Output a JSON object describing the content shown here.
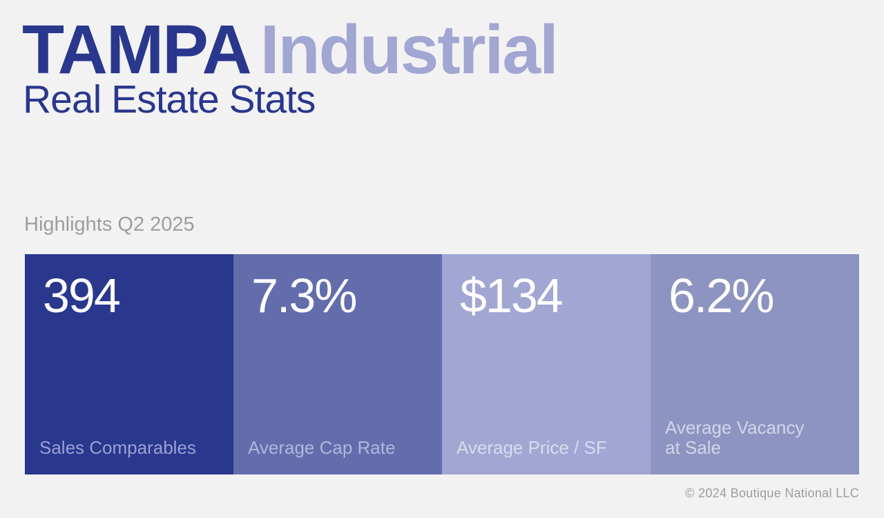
{
  "header": {
    "city": "TAMPA",
    "sector": "Industrial",
    "subtitle": "Real Estate Stats"
  },
  "highlights": {
    "label": "Highlights Q2 2025"
  },
  "stats": [
    {
      "value": "394",
      "label": "Sales Comparables",
      "bg": "#29378d",
      "label_color": "#9aa1d6"
    },
    {
      "value": "7.3%",
      "label": "Average Cap Rate",
      "bg": "#636dac",
      "label_color": "#b1b6dd"
    },
    {
      "value": "$134",
      "label": "Average Price / SF",
      "bg": "#a1a6d3",
      "label_color": "#dadcee"
    },
    {
      "value": "6.2%",
      "label": "Average Vacancy\nat Sale",
      "bg": "#8e94c1",
      "label_color": "#d2d5ea"
    }
  ],
  "footer": {
    "copyright": "© 2024 Boutique National LLC"
  },
  "colors": {
    "background": "#f2f2f3",
    "brand_dark": "#29378d",
    "brand_light": "#a1a6d3",
    "muted_text": "#9d9d9f"
  }
}
